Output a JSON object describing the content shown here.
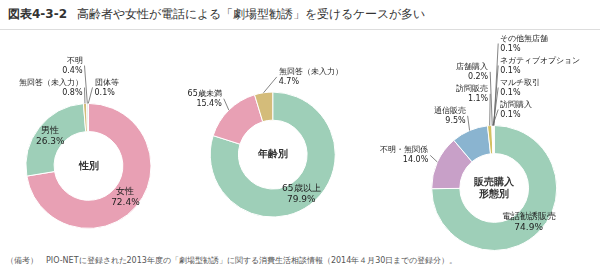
{
  "title": "高齢者や女性が電話による「劇場型勧誘」を受けるケースが多い",
  "subtitle": "図表4-3-2",
  "note": "（備考）　PIO-NETに登録された2013年度の「劇場型勧誘」に関する消費生活相談情報（2014年４月30日までの登録分）。",
  "chart_data": [
    {
      "type": "doughnut",
      "title": "性別",
      "categories": [
        "女性",
        "男性",
        "無回答（未入力）",
        "不明",
        "団体等"
      ],
      "values": [
        72.4,
        26.3,
        0.8,
        0.4,
        0.1
      ],
      "value_labels": [
        "72.4%",
        "26.3%",
        "0.8%",
        "0.4%",
        "0.1%"
      ],
      "colors": [
        "#e8a0b4",
        "#9ecfb8",
        "#d4bc7a",
        "#cccccc",
        "#aec8d8"
      ],
      "data_labels": true
    },
    {
      "type": "doughnut",
      "title": "年齢別",
      "categories": [
        "65歳以上",
        "65歳未満",
        "無回答（未入力）"
      ],
      "values": [
        79.9,
        15.4,
        4.7
      ],
      "value_labels": [
        "79.9%",
        "15.4%",
        "4.7%"
      ],
      "colors": [
        "#9ecfb8",
        "#e8a0b4",
        "#d4bc7a"
      ],
      "data_labels": true
    },
    {
      "type": "doughnut",
      "title": "販売購入\n形態別",
      "categories": [
        "電話勧誘販売",
        "不明・無関係",
        "通信販売",
        "訪問販売",
        "店舗購入",
        "訪問購入",
        "マルチ取引",
        "ネガティブオプション",
        "その他無店舗"
      ],
      "values": [
        74.9,
        14.0,
        9.5,
        1.1,
        0.2,
        0.1,
        0.1,
        0.1,
        0.1
      ],
      "value_labels": [
        "74.9%",
        "14.0%",
        "9.5%",
        "1.1%",
        "0.2%",
        "0.1%",
        "0.1%",
        "0.1%",
        "0.1%"
      ],
      "colors": [
        "#9ecfb8",
        "#c8a0c8",
        "#8ab4d0",
        "#d4c060",
        "#e8a0b4",
        "#b0d0b0",
        "#a8c8a8",
        "#c0d890",
        "#d8c8a0"
      ],
      "data_labels": true
    }
  ]
}
